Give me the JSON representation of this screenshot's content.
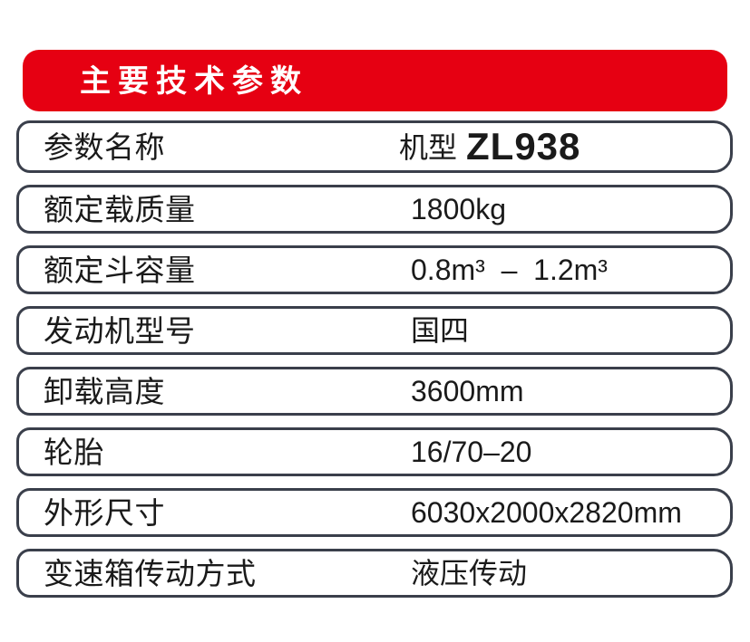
{
  "header": {
    "title": "主要技术参数"
  },
  "colors": {
    "accent_red": "#e60012",
    "row_border": "#3a3f4b",
    "text": "#1a1a1a",
    "title_text": "#ffffff"
  },
  "table": {
    "header_row": {
      "label": "参数名称",
      "value_prefix": "机型",
      "model": "ZL938"
    },
    "rows": [
      {
        "label": "额定载质量",
        "value": "1800kg"
      },
      {
        "label": "额定斗容量",
        "value": "0.8m³  –  1.2m³"
      },
      {
        "label": "发动机型号",
        "value": "国四"
      },
      {
        "label": "卸载高度",
        "value": "3600mm"
      },
      {
        "label": "轮胎",
        "value": "16/70–20"
      },
      {
        "label": "外形尺寸",
        "value": "6030x2000x2820mm"
      },
      {
        "label": "变速箱传动方式",
        "value": "液压传动"
      }
    ]
  }
}
